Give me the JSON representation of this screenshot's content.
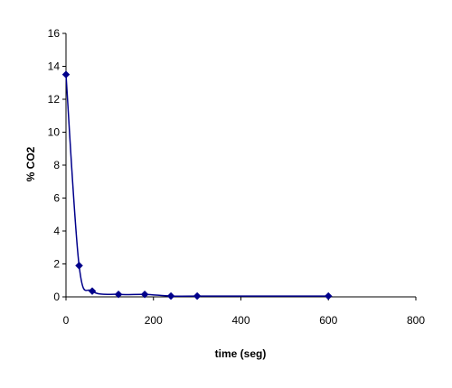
{
  "chart_data": {
    "type": "scatter",
    "title": "",
    "xlabel": "time (seg)",
    "ylabel": "% CO2",
    "xlim": [
      0,
      800
    ],
    "ylim": [
      0,
      16
    ],
    "xticks": [
      0,
      200,
      400,
      600,
      800
    ],
    "yticks": [
      0,
      2,
      4,
      6,
      8,
      10,
      12,
      14,
      16
    ],
    "grid": false,
    "legend": "none",
    "series": [
      {
        "color": "#00008B",
        "marker": "diamond",
        "line": "smooth",
        "points": [
          {
            "x": 0,
            "y": 13.5
          },
          {
            "x": 30,
            "y": 1.9
          },
          {
            "x": 60,
            "y": 0.35
          },
          {
            "x": 120,
            "y": 0.15
          },
          {
            "x": 180,
            "y": 0.15
          },
          {
            "x": 240,
            "y": 0.05
          },
          {
            "x": 300,
            "y": 0.05
          },
          {
            "x": 600,
            "y": 0.05
          }
        ]
      }
    ]
  }
}
